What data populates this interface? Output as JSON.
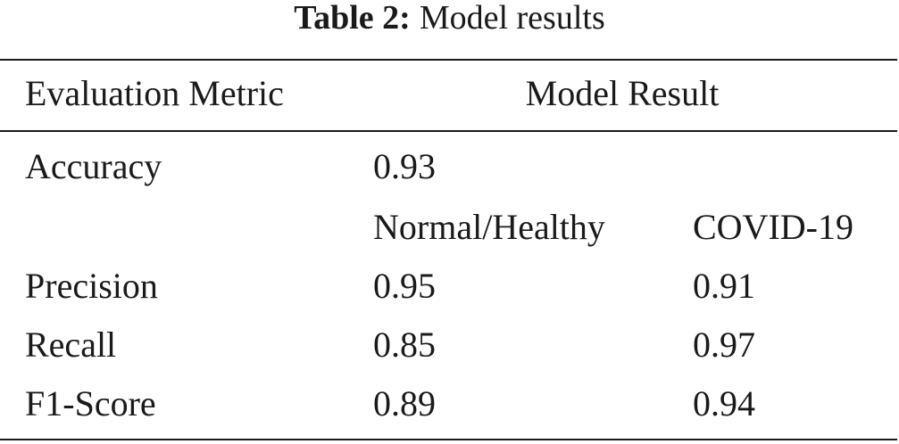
{
  "caption": {
    "label": "Table 2:",
    "text": "Model results"
  },
  "header": {
    "metric": "Evaluation Metric",
    "result": "Model Result"
  },
  "accuracy": {
    "metric": "Accuracy",
    "value": "0.93"
  },
  "classes": {
    "normal": "Normal/Healthy",
    "covid": "COVID-19"
  },
  "rows": [
    {
      "metric": "Precision",
      "normal": "0.95",
      "covid": "0.91"
    },
    {
      "metric": "Recall",
      "normal": "0.85",
      "covid": "0.97"
    },
    {
      "metric": "F1-Score",
      "normal": "0.89",
      "covid": "0.94"
    }
  ]
}
